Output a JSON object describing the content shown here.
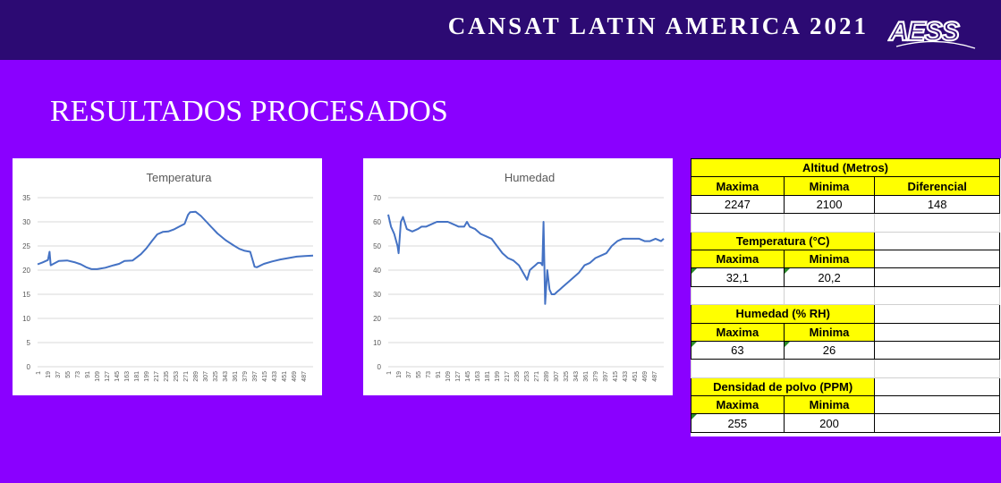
{
  "header": {
    "brand": "CANSAT LATIN AMERICA 2021",
    "logo_text": "AESS"
  },
  "page_title": "RESULTADOS PROCESADOS",
  "chart_data": [
    {
      "type": "line",
      "title": "Temperatura",
      "ylim": [
        0,
        35
      ],
      "yticks": [
        "0",
        "5",
        "10",
        "15",
        "20",
        "25",
        "30",
        "35"
      ],
      "xticks": [
        "1",
        "19",
        "37",
        "55",
        "73",
        "91",
        "109",
        "127",
        "145",
        "163",
        "181",
        "199",
        "217",
        "235",
        "253",
        "271",
        "289",
        "307",
        "325",
        "343",
        "361",
        "379",
        "397",
        "415",
        "433",
        "451",
        "469",
        "487"
      ],
      "xrange": [
        1,
        505
      ],
      "grid": true,
      "color": "#4472c4",
      "series": [
        {
          "x": [
            1,
            10,
            20,
            23,
            25,
            30,
            40,
            55,
            70,
            80,
            90,
            100,
            110,
            125,
            140,
            150,
            160,
            175,
            190,
            200,
            210,
            220,
            230,
            240,
            250,
            260,
            270,
            276,
            280,
            290,
            300,
            310,
            320,
            330,
            345,
            360,
            370,
            380,
            390,
            398,
            402,
            415,
            430,
            445,
            460,
            475,
            490,
            505
          ],
          "y": [
            21.2,
            21.6,
            22.1,
            23.8,
            21.0,
            21.3,
            21.9,
            22.0,
            21.6,
            21.2,
            20.6,
            20.2,
            20.2,
            20.5,
            21.0,
            21.3,
            21.9,
            22.0,
            23.3,
            24.5,
            26.0,
            27.4,
            27.9,
            28.0,
            28.4,
            29.0,
            29.6,
            31.4,
            32.0,
            32.1,
            31.2,
            30.0,
            28.8,
            27.6,
            26.2,
            25.1,
            24.4,
            24.0,
            23.8,
            20.7,
            20.6,
            21.3,
            21.8,
            22.2,
            22.5,
            22.8,
            22.9,
            23.0
          ]
        }
      ]
    },
    {
      "type": "line",
      "title": "Humedad",
      "ylim": [
        0,
        70
      ],
      "yticks": [
        "0",
        "10",
        "20",
        "30",
        "40",
        "50",
        "60",
        "70"
      ],
      "xticks": [
        "1",
        "19",
        "37",
        "55",
        "73",
        "91",
        "109",
        "127",
        "145",
        "163",
        "181",
        "199",
        "217",
        "235",
        "253",
        "271",
        "289",
        "307",
        "325",
        "343",
        "361",
        "379",
        "397",
        "415",
        "433",
        "451",
        "469",
        "487"
      ],
      "xrange": [
        1,
        505
      ],
      "grid": true,
      "color": "#4472c4",
      "series": [
        {
          "x": [
            1,
            6,
            12,
            18,
            20,
            24,
            28,
            35,
            45,
            55,
            62,
            70,
            80,
            90,
            100,
            110,
            120,
            130,
            140,
            145,
            150,
            160,
            170,
            180,
            190,
            200,
            210,
            220,
            230,
            240,
            250,
            255,
            260,
            265,
            270,
            275,
            280,
            283,
            285,
            288,
            292,
            296,
            300,
            305,
            310,
            315,
            320,
            330,
            340,
            350,
            360,
            370,
            380,
            390,
            400,
            410,
            420,
            430,
            440,
            450,
            460,
            470,
            480,
            490,
            500,
            505
          ],
          "y": [
            63,
            58,
            55,
            50,
            47,
            60,
            62,
            57,
            56,
            57,
            58,
            58,
            59,
            60,
            60,
            60,
            59,
            58,
            58,
            60,
            58,
            57,
            55,
            54,
            53,
            50,
            47,
            45,
            44,
            42,
            38,
            36,
            40,
            41,
            42,
            43,
            43,
            42,
            60,
            26,
            40,
            32,
            30,
            30,
            31,
            32,
            33,
            35,
            37,
            39,
            42,
            43,
            45,
            46,
            47,
            50,
            52,
            53,
            53,
            53,
            53,
            52,
            52,
            53,
            52,
            53
          ]
        }
      ]
    }
  ],
  "stats_table": {
    "altitud": {
      "title": "Altitud (Metros)",
      "h1": "Maxima",
      "h2": "Minima",
      "h3": "Diferencial",
      "v1": "2247",
      "v2": "2100",
      "v3": "148"
    },
    "temperatura": {
      "title": "Temperatura (°C)",
      "h1": "Maxima",
      "h2": "Minima",
      "v1": "32,1",
      "v2": "20,2"
    },
    "humedad": {
      "title": "Humedad (% RH)",
      "h1": "Maxima",
      "h2": "Minima",
      "v1": "63",
      "v2": "26"
    },
    "polvo": {
      "title": "Densidad de polvo (PPM)",
      "h1": "Maxima",
      "h2": "Minima",
      "v1": "255",
      "v2": "200"
    }
  }
}
